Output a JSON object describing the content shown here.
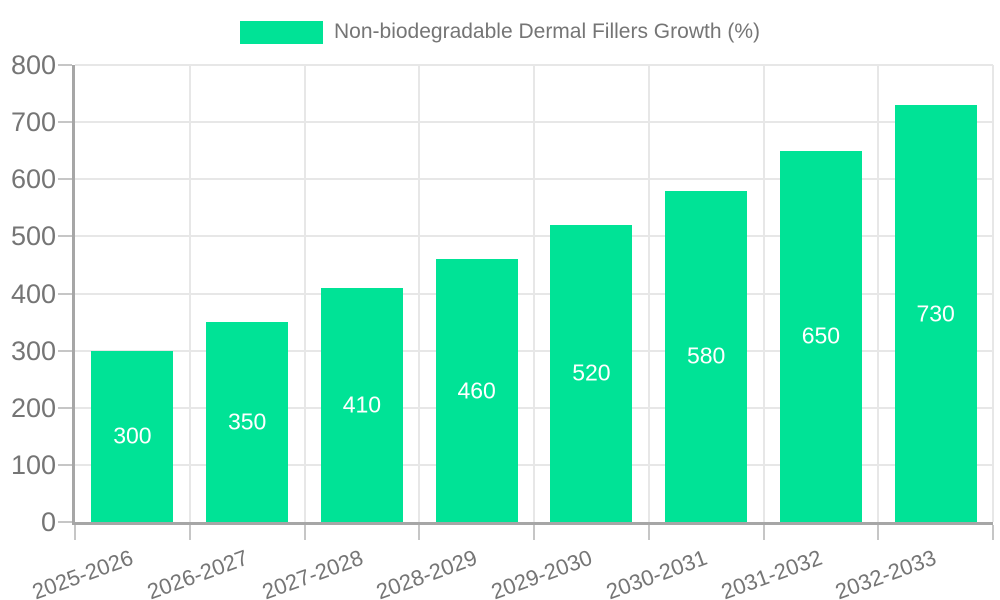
{
  "legend": {
    "label": "Non-biodegradable Dermal Fillers Growth (%)"
  },
  "chart_data": {
    "type": "bar",
    "title": "Non-biodegradable Dermal Fillers Growth (%)",
    "categories": [
      "2025-2026",
      "2026-2027",
      "2027-2028",
      "2028-2029",
      "2029-2030",
      "2030-2031",
      "2031-2032",
      "2032-2033"
    ],
    "values": [
      300,
      350,
      410,
      460,
      520,
      580,
      650,
      730
    ],
    "xlabel": "",
    "ylabel": "",
    "ylim": [
      0,
      800
    ],
    "ytick_step": 100,
    "grid": true,
    "legend_position": "top",
    "data_labels": "inside-center",
    "colors": {
      "bar": "#00E396",
      "data_label": "#FFFFFF",
      "axis_text": "#757575",
      "grid_line": "#E7E7E7",
      "tick": "#C6C6C6",
      "axis_line": "#A6A6A6",
      "background": "#FFFFFF"
    }
  }
}
